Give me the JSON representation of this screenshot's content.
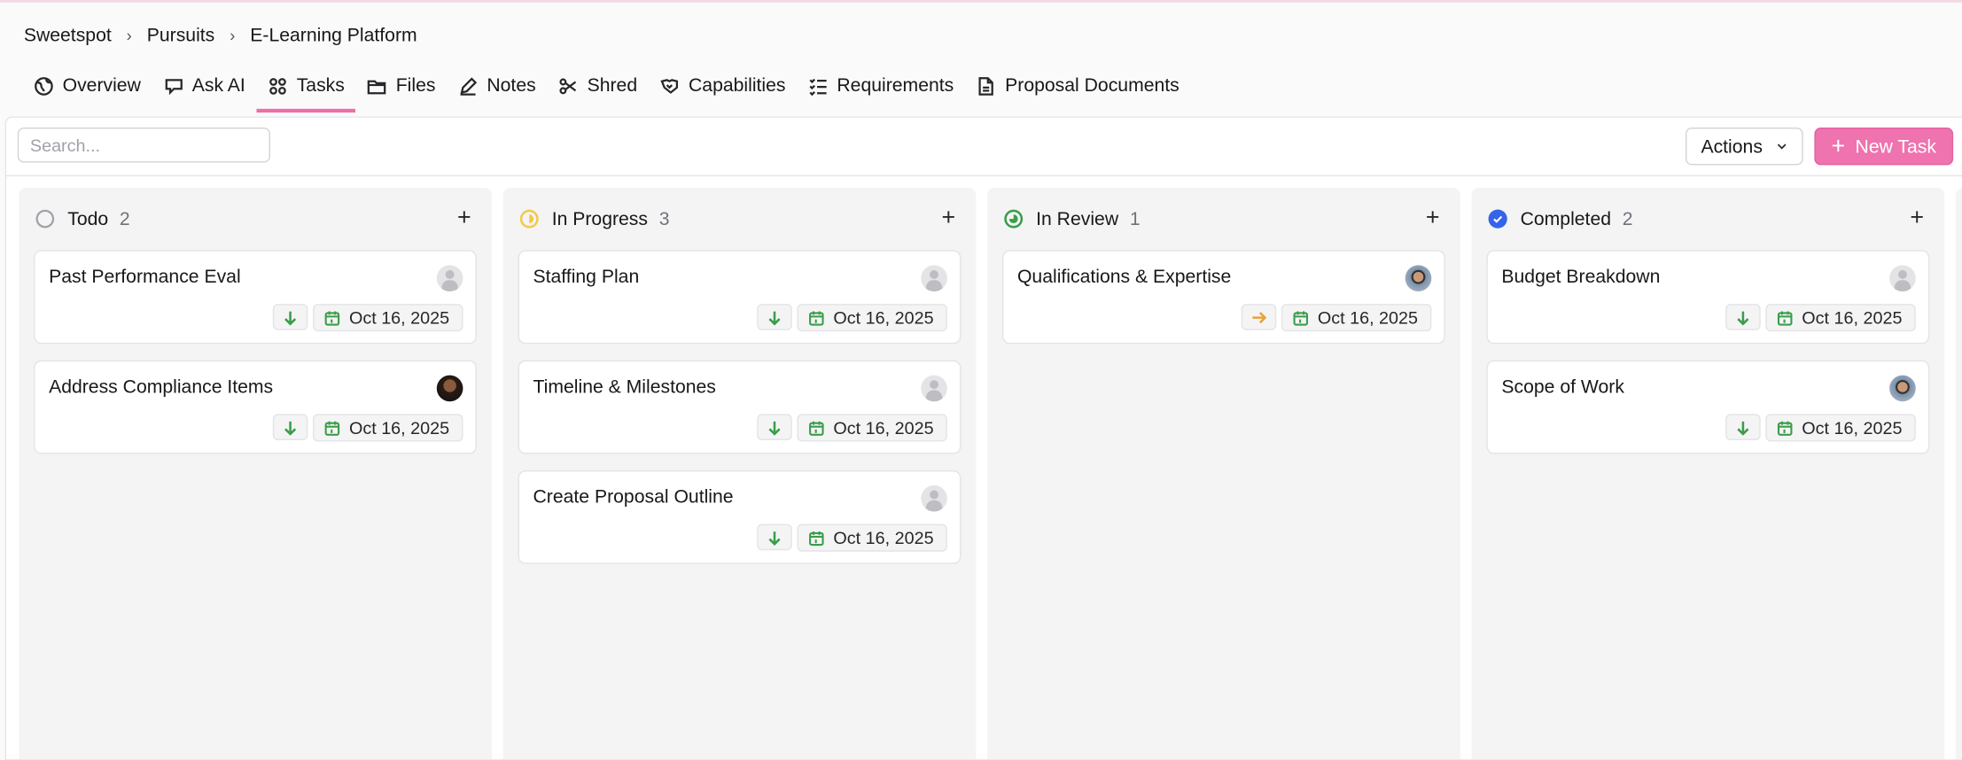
{
  "breadcrumb": [
    "Sweetspot",
    "Pursuits",
    "E-Learning Platform"
  ],
  "tabs": [
    {
      "label": "Overview",
      "icon": "globe-icon"
    },
    {
      "label": "Ask AI",
      "icon": "chat-icon"
    },
    {
      "label": "Tasks",
      "icon": "grid-icon",
      "active": true
    },
    {
      "label": "Files",
      "icon": "folder-icon"
    },
    {
      "label": "Notes",
      "icon": "pencil-icon"
    },
    {
      "label": "Shred",
      "icon": "scissors-icon"
    },
    {
      "label": "Capabilities",
      "icon": "handshake-icon"
    },
    {
      "label": "Requirements",
      "icon": "checklist-icon"
    },
    {
      "label": "Proposal Documents",
      "icon": "document-icon"
    }
  ],
  "toolbar": {
    "search_placeholder": "Search...",
    "search_value": "",
    "actions_label": "Actions",
    "new_task_label": "New Task"
  },
  "colors": {
    "accent": "#ee73ae",
    "priority_low": "#3a9d4a",
    "priority_medium": "#e9a23b",
    "in_progress": "#f2c94c",
    "in_review": "#3a9d4a",
    "completed": "#3563e9"
  },
  "columns": [
    {
      "title": "Todo",
      "count": "2",
      "status": "todo",
      "cards": [
        {
          "title": "Past Performance Eval",
          "avatar": "placeholder",
          "priority": "low",
          "due": "Oct 16, 2025"
        },
        {
          "title": "Address Compliance Items",
          "avatar": "dark",
          "priority": "low",
          "due": "Oct 16, 2025"
        }
      ]
    },
    {
      "title": "In Progress",
      "count": "3",
      "status": "in-progress",
      "cards": [
        {
          "title": "Staffing Plan",
          "avatar": "placeholder",
          "priority": "low",
          "due": "Oct 16, 2025"
        },
        {
          "title": "Timeline & Milestones",
          "avatar": "placeholder",
          "priority": "low",
          "due": "Oct 16, 2025"
        },
        {
          "title": "Create Proposal Outline",
          "avatar": "placeholder",
          "priority": "low",
          "due": "Oct 16, 2025"
        }
      ]
    },
    {
      "title": "In Review",
      "count": "1",
      "status": "in-review",
      "cards": [
        {
          "title": "Qualifications & Expertise",
          "avatar": "photo",
          "priority": "medium",
          "due": "Oct 16, 2025"
        }
      ]
    },
    {
      "title": "Completed",
      "count": "2",
      "status": "completed",
      "cards": [
        {
          "title": "Budget Breakdown",
          "avatar": "placeholder",
          "priority": "low",
          "due": "Oct 16, 2025"
        },
        {
          "title": "Scope of Work",
          "avatar": "photo",
          "priority": "low",
          "due": "Oct 16, 2025"
        }
      ]
    }
  ]
}
